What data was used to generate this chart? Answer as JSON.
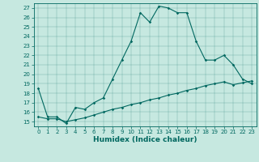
{
  "title": "",
  "xlabel": "Humidex (Indice chaleur)",
  "ylabel": "",
  "bg_color": "#c6e8e0",
  "line_color": "#006860",
  "xlim": [
    -0.5,
    23.5
  ],
  "ylim": [
    14.5,
    27.5
  ],
  "xticks": [
    0,
    1,
    2,
    3,
    4,
    5,
    6,
    7,
    8,
    9,
    10,
    11,
    12,
    13,
    14,
    15,
    16,
    17,
    18,
    19,
    20,
    21,
    22,
    23
  ],
  "yticks": [
    15,
    16,
    17,
    18,
    19,
    20,
    21,
    22,
    23,
    24,
    25,
    26,
    27
  ],
  "main_x": [
    0,
    1,
    2,
    3,
    4,
    5,
    6,
    7,
    8,
    9,
    10,
    11,
    12,
    13,
    14,
    15,
    16,
    17,
    18,
    19,
    20,
    21,
    22,
    23
  ],
  "main_y": [
    18.5,
    15.5,
    15.5,
    14.8,
    16.5,
    16.3,
    17.0,
    17.5,
    19.5,
    21.5,
    23.5,
    26.5,
    25.5,
    27.2,
    27.0,
    26.5,
    26.5,
    23.5,
    21.5,
    21.5,
    22.0,
    21.0,
    19.5,
    19.0
  ],
  "base_x": [
    0,
    1,
    2,
    3,
    4,
    5,
    6,
    7,
    8,
    9,
    10,
    11,
    12,
    13,
    14,
    15,
    16,
    17,
    18,
    19,
    20,
    21,
    22,
    23
  ],
  "base_y": [
    15.5,
    15.3,
    15.3,
    15.0,
    15.2,
    15.4,
    15.7,
    16.0,
    16.3,
    16.5,
    16.8,
    17.0,
    17.3,
    17.5,
    17.8,
    18.0,
    18.3,
    18.5,
    18.8,
    19.0,
    19.2,
    18.9,
    19.1,
    19.3
  ],
  "tick_fontsize": 5.0,
  "xlabel_fontsize": 6.5,
  "marker_size": 1.8,
  "line_width": 0.8
}
